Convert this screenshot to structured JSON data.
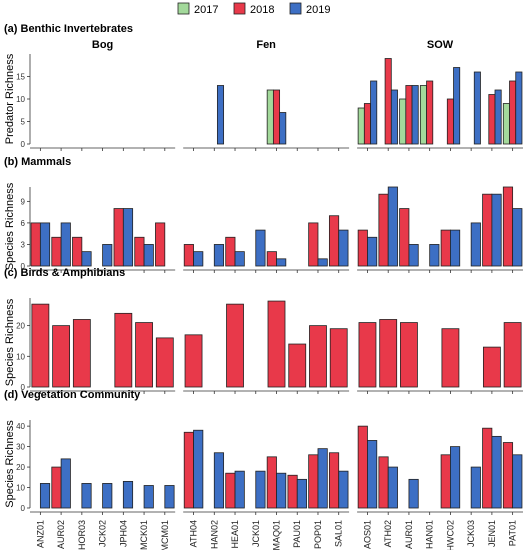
{
  "legend": [
    {
      "label": "2017",
      "color": "#a3d99b"
    },
    {
      "label": "2018",
      "color": "#e8394a"
    },
    {
      "label": "2019",
      "color": "#3d6fc4"
    }
  ],
  "groups": [
    "Bog",
    "Fen",
    "SOW"
  ],
  "sites": [
    "ANZ01",
    "AUR02",
    "HOR03",
    "JCK02",
    "JPH04",
    "MCK01",
    "MCM01",
    "ATH04",
    "HAN02",
    "HEA01",
    "JCK01",
    "MAQ01",
    "PAU01",
    "POP01",
    "SAL01",
    "AOS01",
    "ATH02",
    "AUR01",
    "HAN01",
    "HWC02",
    "JCK03",
    "JEN01",
    "PAT01"
  ],
  "chart_data": [
    {
      "type": "bar",
      "title": "(a) Benthic Invertebrates",
      "ylabel": "Predator Richness",
      "ylim": [
        0,
        20
      ],
      "yticks": [
        0,
        5,
        10,
        15
      ],
      "series": [
        {
          "name": "2017",
          "values": [
            0,
            0,
            0,
            0,
            0,
            0,
            0,
            0,
            0,
            0,
            0,
            12,
            0,
            0,
            0,
            8,
            0,
            10,
            13,
            0,
            0,
            0,
            9
          ]
        },
        {
          "name": "2018",
          "values": [
            0,
            0,
            0,
            0,
            0,
            0,
            0,
            0,
            0,
            0,
            0,
            12,
            0,
            0,
            0,
            9,
            19,
            13,
            14,
            10,
            0,
            11,
            14
          ]
        },
        {
          "name": "2019",
          "values": [
            0,
            0,
            0,
            0,
            0,
            0,
            0,
            0,
            13,
            0,
            0,
            7,
            0,
            0,
            0,
            14,
            12,
            13,
            0,
            17,
            16,
            12,
            16
          ]
        }
      ]
    },
    {
      "type": "bar",
      "title": "(b) Mammals",
      "ylabel": "Species Richness",
      "ylim": [
        0,
        11
      ],
      "yticks": [
        0,
        3,
        6,
        9
      ],
      "series": [
        {
          "name": "2018",
          "values": [
            6,
            4,
            4,
            0,
            8,
            4,
            6,
            3,
            0,
            4,
            0,
            2,
            0,
            6,
            7,
            5,
            10,
            8,
            0,
            5,
            0,
            10,
            11
          ]
        },
        {
          "name": "2019",
          "values": [
            6,
            6,
            2,
            3,
            8,
            3,
            0,
            2,
            3,
            2,
            5,
            1,
            0,
            1,
            5,
            4,
            11,
            3,
            3,
            5,
            6,
            10,
            8
          ]
        }
      ]
    },
    {
      "type": "bar",
      "title": "(c) Birds & Amphibians",
      "ylabel": "Species Richness",
      "ylim": [
        0,
        29
      ],
      "yticks": [
        0,
        10,
        20
      ],
      "series": [
        {
          "name": "2018",
          "values": [
            27,
            20,
            22,
            0,
            24,
            21,
            16,
            17,
            0,
            27,
            0,
            28,
            14,
            20,
            19,
            21,
            22,
            21,
            0,
            19,
            0,
            13,
            21
          ]
        }
      ]
    },
    {
      "type": "bar",
      "title": "(d) Vegetation Community",
      "ylabel": "Species Richness",
      "ylim": [
        0,
        43
      ],
      "yticks": [
        0,
        10,
        20,
        30,
        40
      ],
      "series": [
        {
          "name": "2018",
          "values": [
            0,
            20,
            0,
            0,
            0,
            0,
            0,
            37,
            0,
            17,
            0,
            25,
            16,
            26,
            27,
            40,
            25,
            0,
            0,
            26,
            0,
            39,
            32
          ]
        },
        {
          "name": "2019",
          "values": [
            12,
            24,
            12,
            12,
            13,
            11,
            11,
            38,
            27,
            18,
            18,
            17,
            14,
            29,
            18,
            33,
            20,
            14,
            0,
            30,
            20,
            35,
            26
          ]
        }
      ]
    }
  ]
}
